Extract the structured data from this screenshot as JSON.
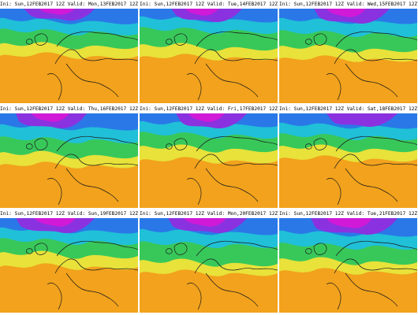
{
  "panels": [
    {
      "ini_label": "Ini:",
      "ini": "Sun,12FEB2017 12Z",
      "valid_label": "Valid:",
      "valid": "Mon,13FEB2017 12Z"
    },
    {
      "ini_label": "Ini:",
      "ini": "Sun,12FEB2017 12Z",
      "valid_label": "Valid:",
      "valid": "Tue,14FEB2017 12Z"
    },
    {
      "ini_label": "Ini:",
      "ini": "Sun,12FEB2017 12Z",
      "valid_label": "Valid:",
      "valid": "Wed,15FEB2017 12Z"
    },
    {
      "ini_label": "Ini:",
      "ini": "Sun,12FEB2017 12Z",
      "valid_label": "Valid:",
      "valid": "Thu,16FEB2017 12Z"
    },
    {
      "ini_label": "Ini:",
      "ini": "Sun,12FEB2017 12Z",
      "valid_label": "Valid:",
      "valid": "Fri,17FEB2017 12Z"
    },
    {
      "ini_label": "Ini:",
      "ini": "Sun,12FEB2017 12Z",
      "valid_label": "Valid:",
      "valid": "Sat,18FEB2017 12Z"
    },
    {
      "ini_label": "Ini:",
      "ini": "Sun,12FEB2017 12Z",
      "valid_label": "Valid:",
      "valid": "Sun,19FEB2017 12Z"
    },
    {
      "ini_label": "Ini:",
      "ini": "Sun,12FEB2017 12Z",
      "valid_label": "Valid:",
      "valid": "Mon,20FEB2017 12Z"
    },
    {
      "ini_label": "Ini:",
      "ini": "Sun,12FEB2017 12Z",
      "valid_label": "Valid:",
      "valid": "Tue,21FEB2017 12Z"
    }
  ],
  "colors": {
    "warm": "#f2a21c",
    "warm_light": "#f6c84a",
    "yellow": "#e8e23a",
    "green": "#38c85a",
    "cyan": "#20c0d8",
    "blue": "#2a78e8",
    "violet": "#8a32e0",
    "magenta": "#d01ad8",
    "coast": "#1a1a1a"
  }
}
